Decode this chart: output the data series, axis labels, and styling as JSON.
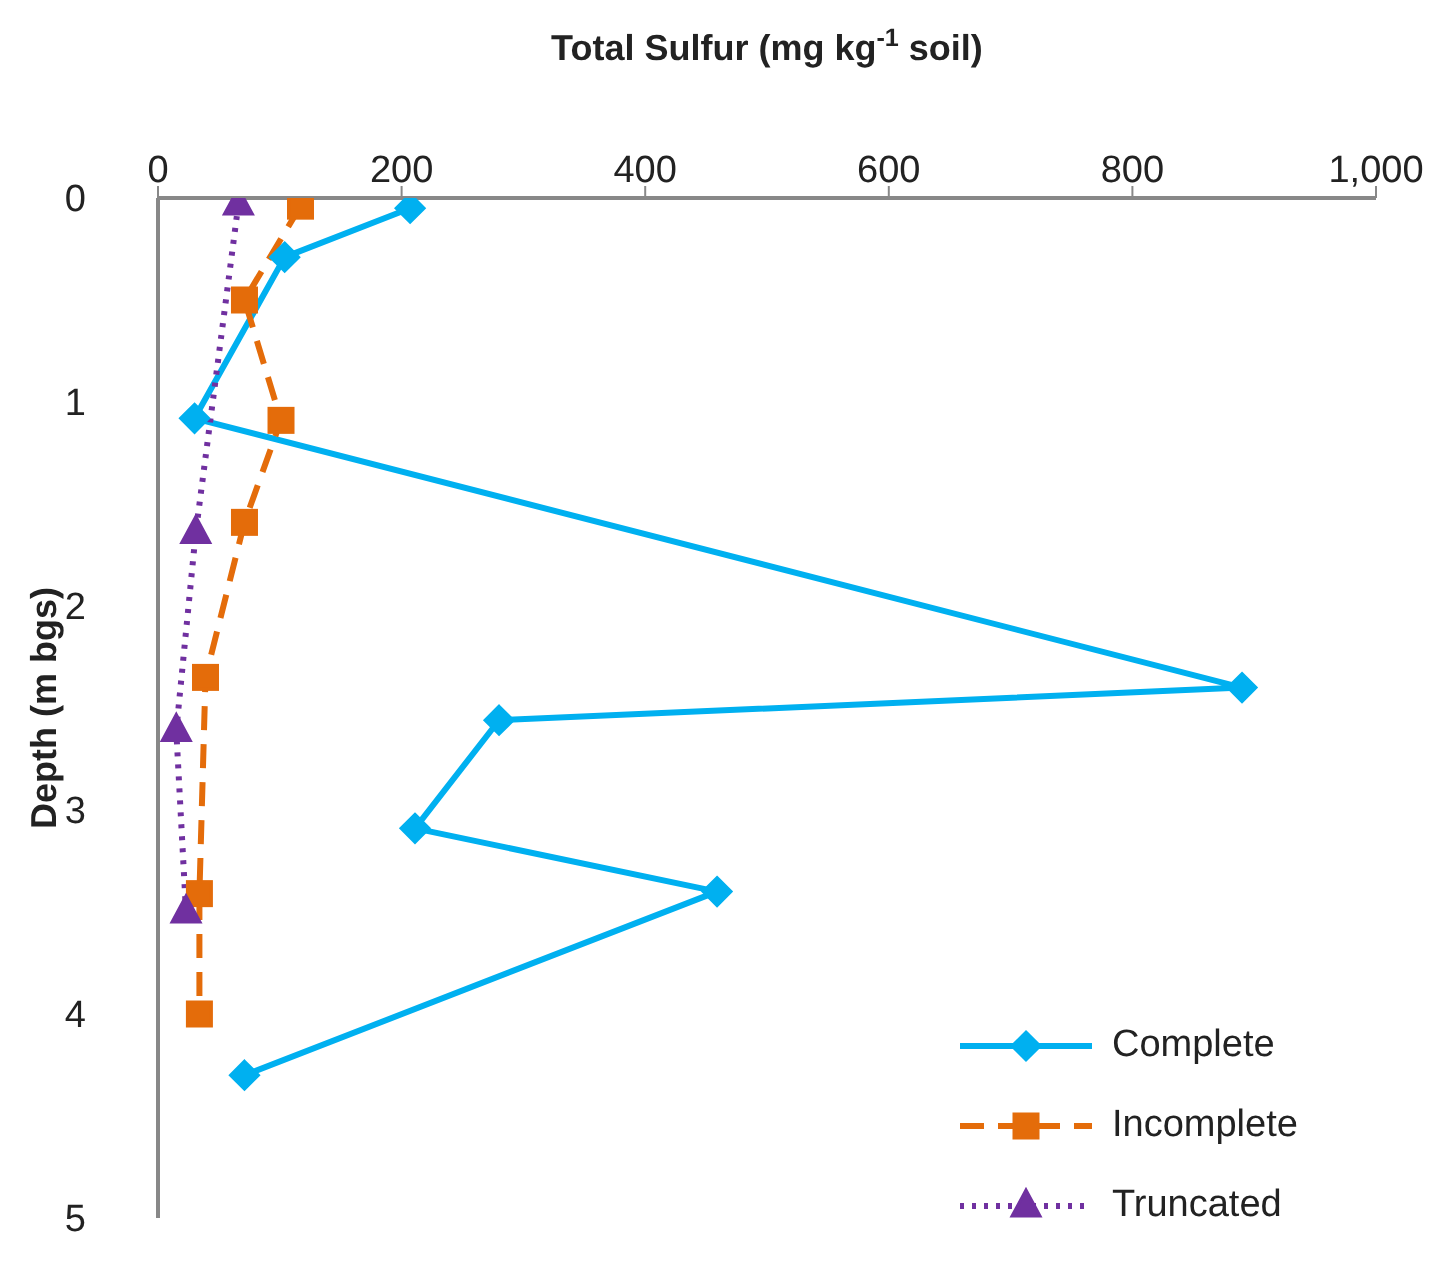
{
  "chart_data": {
    "type": "line",
    "xlabel": "Total Sulfur (mg kg$^{-1}$ soil)",
    "ylabel": "Depth (m bgs)",
    "xlim": [
      0,
      1000
    ],
    "xticks": [
      0,
      200,
      400,
      600,
      800,
      {
        "value": 1000,
        "label": "1,000"
      }
    ],
    "ylim": [
      5,
      0
    ],
    "yticks": [
      0,
      1,
      2,
      3,
      4,
      5
    ],
    "grid": false,
    "legend": "bottom right",
    "series": [
      {
        "name": "Complete",
        "color": "#00b0f0",
        "marker": "diamond",
        "line_style": "solid",
        "x": [
          207,
          104,
          30,
          890,
          280,
          211,
          459,
          71
        ],
        "values": [
          0.05,
          0.29,
          1.08,
          2.4,
          2.56,
          3.09,
          3.4,
          4.3
        ]
      },
      {
        "name": "Incomplete",
        "color": "#e46c0a",
        "marker": "square",
        "line_style": "dashed",
        "x": [
          117,
          71,
          101,
          71,
          39,
          34,
          34
        ],
        "values": [
          0.04,
          0.5,
          1.09,
          1.59,
          2.35,
          3.41,
          4.0
        ]
      },
      {
        "name": "Truncated",
        "color": "#7030a0",
        "marker": "triangle",
        "line_style": "dotted",
        "x": [
          66,
          31,
          15,
          23
        ],
        "values": [
          0.03,
          1.64,
          2.61,
          3.5
        ]
      }
    ]
  }
}
